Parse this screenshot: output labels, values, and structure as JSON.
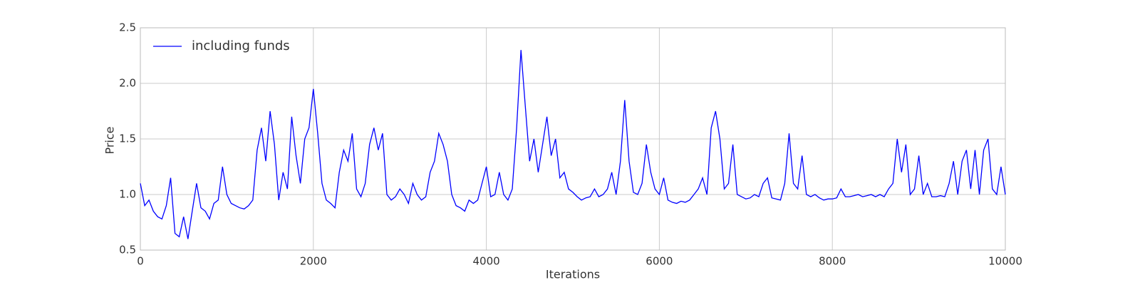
{
  "chart_data": {
    "type": "line",
    "xlabel": "Iterations",
    "ylabel": "Price",
    "xlim": [
      0,
      10000
    ],
    "ylim": [
      0.5,
      2.5
    ],
    "xticks": [
      0,
      2000,
      4000,
      6000,
      8000,
      10000
    ],
    "yticks": [
      0.5,
      {
        "value": 1,
        "label": "1.0"
      },
      1.5,
      {
        "value": 2,
        "label": "2.0"
      },
      2.5
    ],
    "grid": true,
    "legend": "upper left",
    "x": [
      0,
      50,
      100,
      150,
      200,
      250,
      300,
      350,
      400,
      450,
      500,
      550,
      600,
      650,
      700,
      750,
      800,
      850,
      900,
      950,
      1000,
      1050,
      1100,
      1150,
      1200,
      1250,
      1300,
      1350,
      1400,
      1450,
      1500,
      1550,
      1600,
      1650,
      1700,
      1750,
      1800,
      1850,
      1900,
      1950,
      2000,
      2050,
      2100,
      2150,
      2200,
      2250,
      2300,
      2350,
      2400,
      2450,
      2500,
      2550,
      2600,
      2650,
      2700,
      2750,
      2800,
      2850,
      2900,
      2950,
      3000,
      3050,
      3100,
      3150,
      3200,
      3250,
      3300,
      3350,
      3400,
      3450,
      3500,
      3550,
      3600,
      3650,
      3700,
      3750,
      3800,
      3850,
      3900,
      3950,
      4000,
      4050,
      4100,
      4150,
      4200,
      4250,
      4300,
      4350,
      4400,
      4450,
      4500,
      4550,
      4600,
      4650,
      4700,
      4750,
      4800,
      4850,
      4900,
      4950,
      5000,
      5050,
      5100,
      5150,
      5200,
      5250,
      5300,
      5350,
      5400,
      5450,
      5500,
      5550,
      5600,
      5650,
      5700,
      5750,
      5800,
      5850,
      5900,
      5950,
      6000,
      6050,
      6100,
      6150,
      6200,
      6250,
      6300,
      6350,
      6400,
      6450,
      6500,
      6550,
      6600,
      6650,
      6700,
      6750,
      6800,
      6850,
      6900,
      6950,
      7000,
      7050,
      7100,
      7150,
      7200,
      7250,
      7300,
      7350,
      7400,
      7450,
      7500,
      7550,
      7600,
      7650,
      7700,
      7750,
      7800,
      7850,
      7900,
      7950,
      8000,
      8050,
      8100,
      8150,
      8200,
      8250,
      8300,
      8350,
      8400,
      8450,
      8500,
      8550,
      8600,
      8650,
      8700,
      8750,
      8800,
      8850,
      8900,
      8950,
      9000,
      9050,
      9100,
      9150,
      9200,
      9250,
      9300,
      9350,
      9400,
      9450,
      9500,
      9550,
      9600,
      9650,
      9700,
      9750,
      9800,
      9850,
      9900,
      9950,
      10000
    ],
    "series": [
      {
        "name": "including funds",
        "color": "#0000ff",
        "values": [
          1.1,
          0.9,
          0.95,
          0.85,
          0.8,
          0.78,
          0.9,
          1.15,
          0.65,
          0.62,
          0.8,
          0.6,
          0.85,
          1.1,
          0.88,
          0.85,
          0.78,
          0.92,
          0.95,
          1.25,
          1.0,
          0.92,
          0.9,
          0.88,
          0.87,
          0.9,
          0.95,
          1.4,
          1.6,
          1.3,
          1.75,
          1.45,
          0.95,
          1.2,
          1.05,
          1.7,
          1.35,
          1.1,
          1.5,
          1.6,
          1.95,
          1.55,
          1.1,
          0.95,
          0.92,
          0.88,
          1.2,
          1.4,
          1.3,
          1.55,
          1.05,
          0.98,
          1.1,
          1.45,
          1.6,
          1.4,
          1.55,
          1.0,
          0.95,
          0.98,
          1.05,
          1.0,
          0.92,
          1.1,
          1.0,
          0.95,
          0.98,
          1.2,
          1.3,
          1.55,
          1.45,
          1.3,
          1.0,
          0.9,
          0.88,
          0.85,
          0.95,
          0.92,
          0.95,
          1.1,
          1.25,
          0.98,
          1.0,
          1.2,
          1.0,
          0.95,
          1.05,
          1.6,
          2.3,
          1.8,
          1.3,
          1.5,
          1.2,
          1.45,
          1.7,
          1.35,
          1.5,
          1.15,
          1.2,
          1.05,
          1.02,
          0.98,
          0.95,
          0.97,
          0.98,
          1.05,
          0.98,
          1.0,
          1.05,
          1.2,
          1.0,
          1.3,
          1.85,
          1.3,
          1.02,
          1.0,
          1.1,
          1.45,
          1.2,
          1.05,
          1.0,
          1.15,
          0.95,
          0.93,
          0.92,
          0.94,
          0.93,
          0.95,
          1.0,
          1.05,
          1.15,
          1.0,
          1.6,
          1.75,
          1.5,
          1.05,
          1.1,
          1.45,
          1.0,
          0.98,
          0.96,
          0.97,
          1.0,
          0.98,
          1.1,
          1.15,
          0.97,
          0.96,
          0.95,
          1.1,
          1.55,
          1.1,
          1.05,
          1.35,
          1.0,
          0.98,
          1.0,
          0.97,
          0.95,
          0.96,
          0.96,
          0.97,
          1.05,
          0.98,
          0.98,
          0.99,
          1.0,
          0.98,
          0.99,
          1.0,
          0.98,
          1.0,
          0.98,
          1.05,
          1.1,
          1.5,
          1.2,
          1.45,
          1.0,
          1.05,
          1.35,
          1.0,
          1.1,
          0.98,
          0.98,
          0.99,
          0.98,
          1.1,
          1.3,
          1.0,
          1.3,
          1.4,
          1.05,
          1.4,
          1.0,
          1.4,
          1.5,
          1.05,
          1.0,
          1.25,
          1.0
        ]
      }
    ]
  }
}
